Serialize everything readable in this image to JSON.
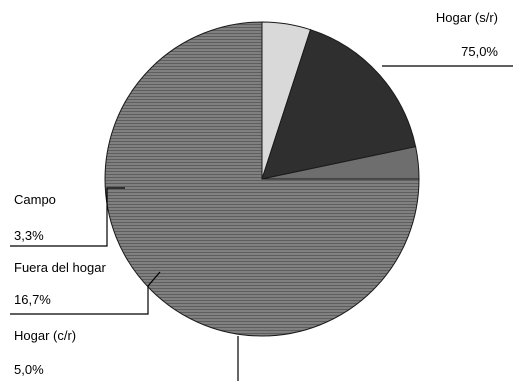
{
  "chart_data": {
    "type": "pie",
    "slices": [
      {
        "label": "Hogar (s/r)",
        "value_label": "75,0%",
        "value": 75.0,
        "color": "#7a7a7a",
        "texture": "hlines"
      },
      {
        "label": "Hogar (c/r)",
        "value_label": "5,0%",
        "value": 5.0,
        "color": "#d9d9d9",
        "texture": "none"
      },
      {
        "label": "Fuera del hogar",
        "value_label": "16,7%",
        "value": 16.7,
        "color": "#2f2f2f",
        "texture": "none"
      },
      {
        "label": "Campo",
        "value_label": "3,3%",
        "value": 3.3,
        "color": "#6e6e6e",
        "texture": "none"
      }
    ],
    "start_angle_deg": 0,
    "direction": "clockwise",
    "legend": "none"
  }
}
